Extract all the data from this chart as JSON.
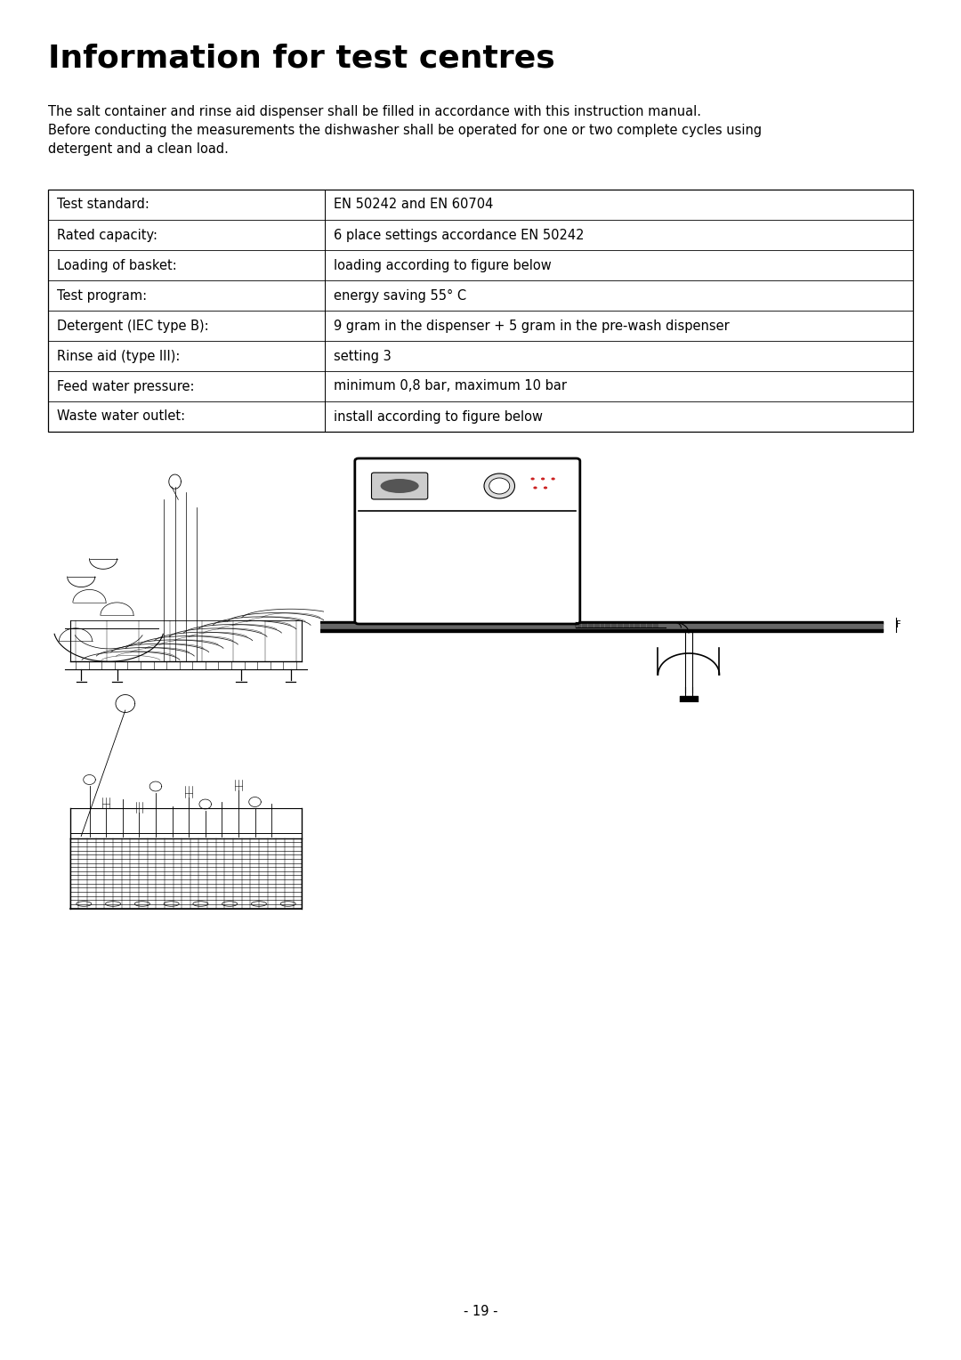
{
  "title": "Information for test centres",
  "title_fontsize": 26,
  "title_fontweight": "bold",
  "bg_color": "#ffffff",
  "text_color": "#000000",
  "intro_text": "The salt container and rinse aid dispenser shall be filled in accordance with this instruction manual.\nBefore conducting the measurements the dishwasher shall be operated for one or two complete cycles using\ndetergent and a clean load.",
  "intro_fontsize": 10.5,
  "table_rows": [
    [
      "Test standard:",
      "EN 50242 and EN 60704"
    ],
    [
      "Rated capacity:",
      "6 place settings accordance EN 50242"
    ],
    [
      "Loading of basket:",
      "loading according to figure below"
    ],
    [
      "Test program:",
      "energy saving 55° C"
    ],
    [
      "Detergent (IEC type B):",
      "9 gram in the dispenser + 5 gram in the pre-wash dispenser"
    ],
    [
      "Rinse aid (type III):",
      "setting 3"
    ],
    [
      "Feed water pressure:",
      "minimum 0,8 bar, maximum 10 bar"
    ],
    [
      "Waste water outlet:",
      "install according to figure below"
    ]
  ],
  "table_fontsize": 10.5,
  "page_number": "- 19 -",
  "page_number_fontsize": 10.5
}
